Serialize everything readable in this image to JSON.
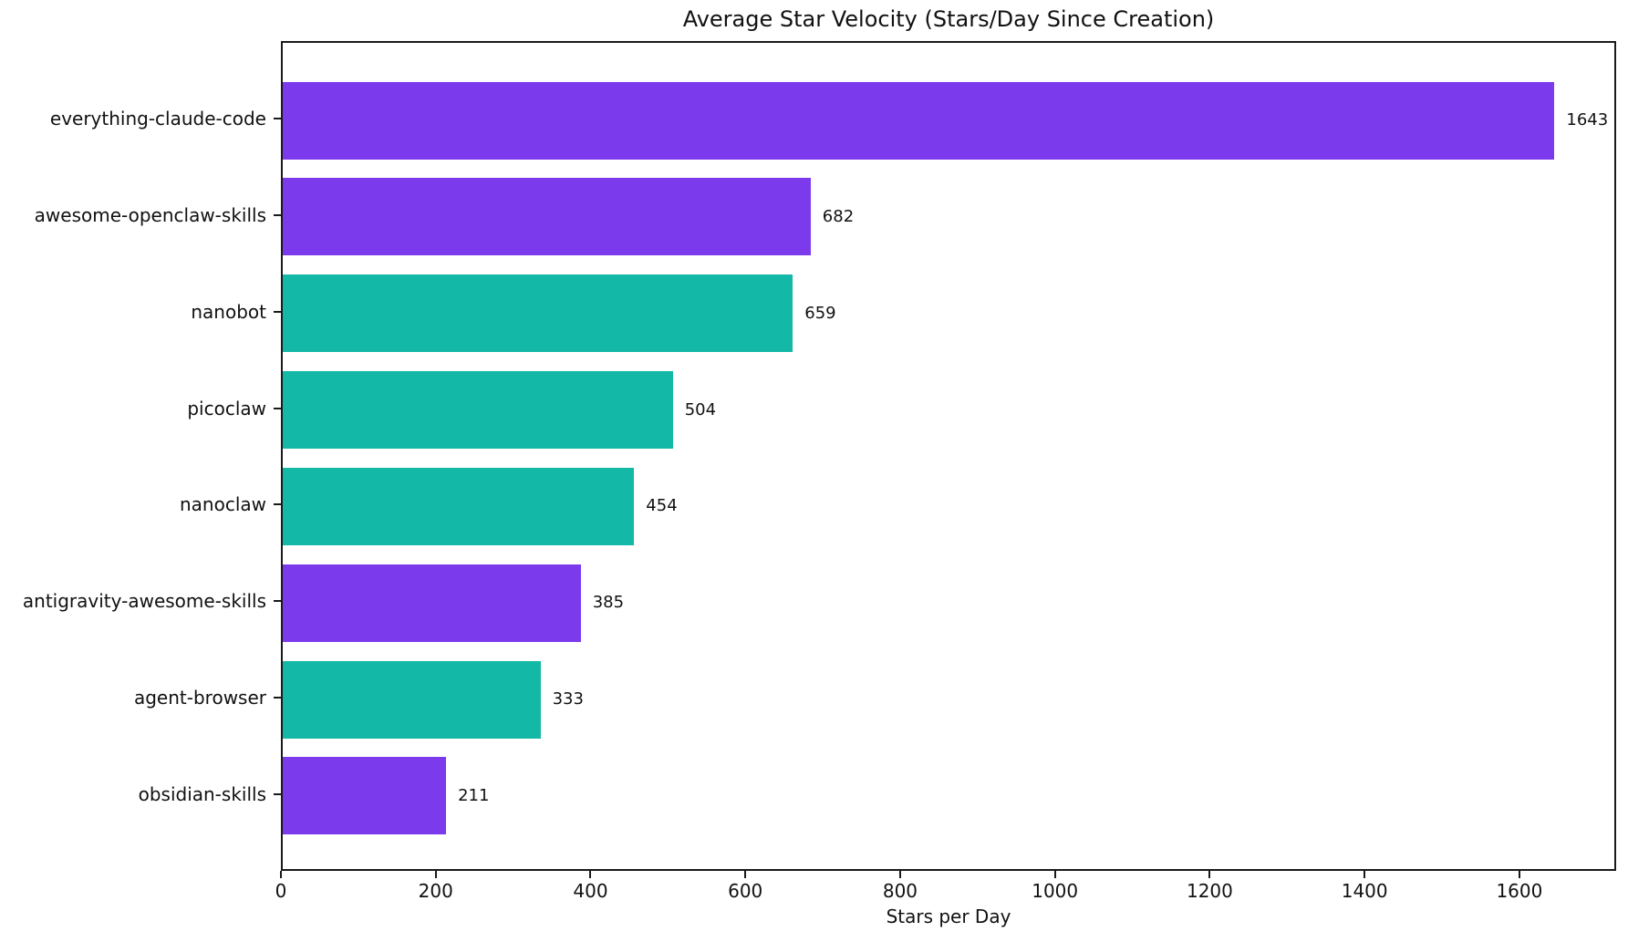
{
  "chart_data": {
    "type": "bar",
    "orientation": "horizontal",
    "title": "Average Star Velocity (Stars/Day Since Creation)",
    "xlabel": "Stars per Day",
    "categories": [
      "everything-claude-code",
      "awesome-openclaw-skills",
      "nanobot",
      "picoclaw",
      "nanoclaw",
      "antigravity-awesome-skills",
      "agent-browser",
      "obsidian-skills"
    ],
    "values": [
      1643,
      682,
      659,
      504,
      454,
      385,
      333,
      211
    ],
    "value_labels": [
      "1643",
      "682",
      "659",
      "504",
      "454",
      "385",
      "333",
      "211"
    ],
    "bar_colors": [
      "#7C3AED",
      "#7C3AED",
      "#14B8A6",
      "#14B8A6",
      "#14B8A6",
      "#7C3AED",
      "#14B8A6",
      "#7C3AED"
    ],
    "palette": {
      "purple": "#7C3AED",
      "teal": "#14B8A6"
    },
    "xlim": [
      0,
      1725
    ],
    "xticks": [
      0,
      200,
      400,
      600,
      800,
      1000,
      1200,
      1400,
      1600
    ],
    "xtick_labels": [
      "0",
      "200",
      "400",
      "600",
      "800",
      "1000",
      "1200",
      "1400",
      "1600"
    ],
    "grid": false,
    "legend": "none",
    "background": "#FFFFFF",
    "spine_color": "#1A1A1A",
    "text_color": "#111111"
  }
}
